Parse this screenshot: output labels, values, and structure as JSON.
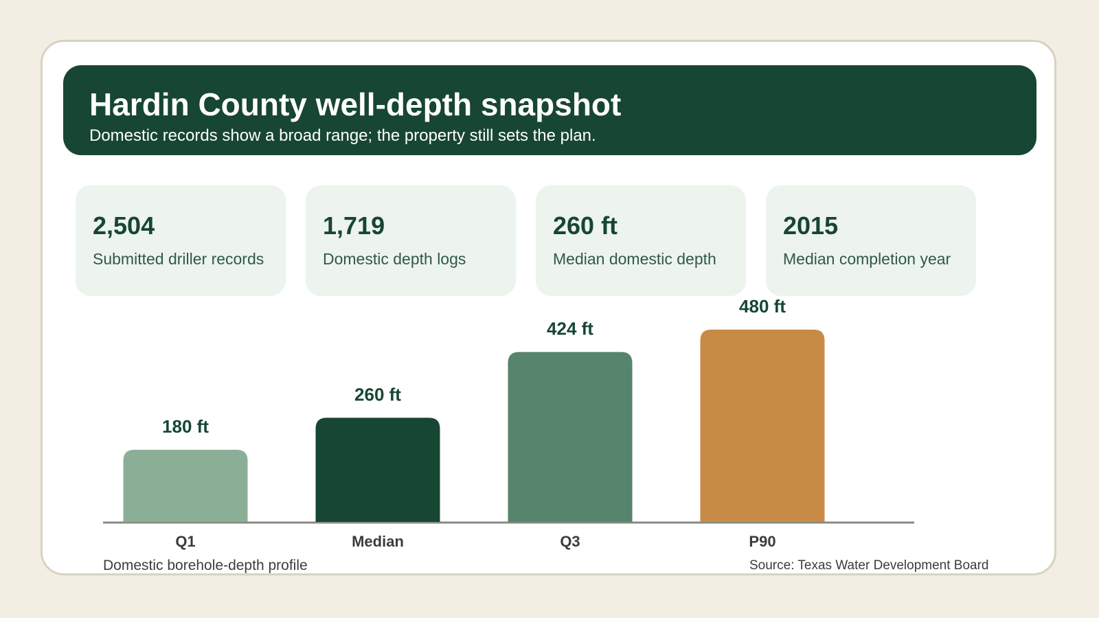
{
  "header": {
    "title": "Hardin County well-depth snapshot",
    "subtitle": "Domestic records show a broad range; the property still sets the plan."
  },
  "stats": [
    {
      "value": "2,504",
      "label": "Submitted driller records"
    },
    {
      "value": "1,719",
      "label": "Domestic depth logs"
    },
    {
      "value": "260 ft",
      "label": "Median domestic depth"
    },
    {
      "value": "2015",
      "label": "Median completion year"
    }
  ],
  "colors": {
    "header": "#174632",
    "stat_card": "#edf3ed",
    "card_border": "#d8d2c3",
    "page_bg": "#f2eee4"
  },
  "chart_data": {
    "type": "bar",
    "title": "",
    "xlabel": "",
    "ylabel": "",
    "unit": "ft",
    "caption": "Domestic borehole-depth profile",
    "categories": [
      "Q1",
      "Median",
      "Q3",
      "P90"
    ],
    "values": [
      180,
      260,
      424,
      480
    ],
    "value_labels": [
      "180 ft",
      "260 ft",
      "424 ft",
      "480 ft"
    ],
    "colors": [
      "#8bae97",
      "#174632",
      "#57846c",
      "#c88b45"
    ],
    "ylim": [
      0,
      480
    ],
    "grid": false
  },
  "footer": {
    "source": "Source: Texas Water Development Board"
  }
}
